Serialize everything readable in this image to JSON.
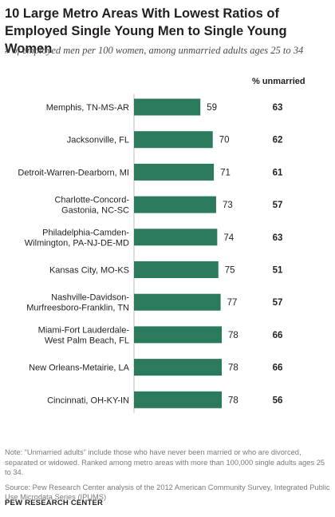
{
  "title": "10 Large Metro Areas With Lowest Ratios of Employed Single Young Men to Single Young Women",
  "subtitle": "# of employed men per 100 women, among unmarried adults ages 25 to 34",
  "unmarried_header": "% unmarried",
  "note": "Note: “Unmarried adults” include those who have never been married or who are divorced, separated or widowed. Ranked among metro areas with more than 100,000 single adults ages 25 to 34.",
  "source": "Source: Pew Research Center analysis of the 2012 American Community Survey, Integrated Public Use Microdata Series (IPUMS)",
  "organization": "PEW RESEARCH CENTER",
  "colors": {
    "bar": "#2b7a5b",
    "text": "#231f20",
    "note": "#7a7a7a",
    "axis": "#bfbfbf"
  },
  "chart_data": {
    "type": "bar",
    "orientation": "horizontal",
    "categories": [
      [
        "Memphis, TN-MS-AR"
      ],
      [
        "Jacksonville, FL"
      ],
      [
        "Detroit-Warren-Dearborn, MI"
      ],
      [
        "Charlotte-Concord-",
        "Gastonia, NC-SC"
      ],
      [
        "Philadelphia-Camden-",
        "Wilmington, PA-NJ-DE-MD"
      ],
      [
        "Kansas City, MO-KS"
      ],
      [
        "Nashville-Davidson-",
        "Murfreesboro-Franklin, TN"
      ],
      [
        "Miami-Fort Lauderdale-",
        "West Palm Beach, FL"
      ],
      [
        "New Orleans-Metairie, LA"
      ],
      [
        "Cincinnati, OH-KY-IN"
      ]
    ],
    "values": [
      59,
      70,
      71,
      73,
      74,
      75,
      77,
      78,
      78,
      78
    ],
    "percent_unmarried": [
      63,
      62,
      61,
      57,
      63,
      51,
      57,
      66,
      66,
      56
    ],
    "xlim": [
      0,
      78
    ]
  }
}
